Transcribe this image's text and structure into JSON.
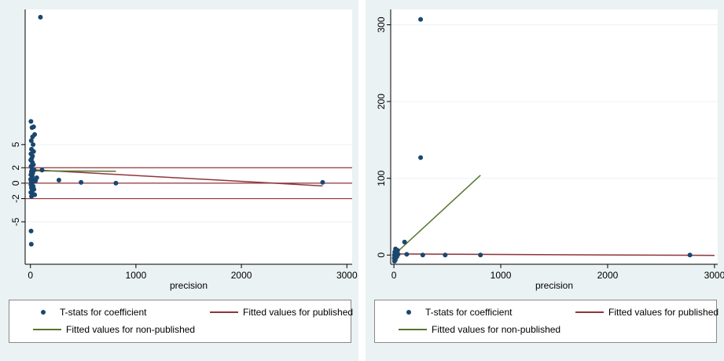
{
  "colors": {
    "background": "#eaf2f3",
    "plot_area": "#ffffff",
    "grid": "#eaf2f3",
    "points": "#1a476f",
    "published_line": "#90353b",
    "nonpublished_line": "#55752f"
  },
  "legend": {
    "tstats": "T-stats for coefficient",
    "published": "Fitted values for published",
    "nonpublished": "Fitted values for non-published"
  },
  "chart_data": [
    {
      "type": "scatter",
      "title": "",
      "xlabel": "precision",
      "ylabel": "",
      "xlim": [
        -50,
        3050
      ],
      "ylim": [
        -10.5,
        22.5
      ],
      "xticks": [
        0,
        1000,
        2000,
        3000
      ],
      "yticks": [
        -5,
        -2,
        0,
        2,
        5
      ],
      "grid": true,
      "legend_position": "bottom",
      "reference_lines": [
        -2,
        0,
        2
      ],
      "series": [
        {
          "name": "T-stats for coefficient",
          "points": [
            [
              95,
              21.5
            ],
            [
              5,
              8.0
            ],
            [
              30,
              7.3
            ],
            [
              15,
              7.2
            ],
            [
              40,
              6.3
            ],
            [
              20,
              6.0
            ],
            [
              8,
              5.5
            ],
            [
              25,
              5.0
            ],
            [
              10,
              4.4
            ],
            [
              30,
              4.1
            ],
            [
              5,
              3.8
            ],
            [
              20,
              3.5
            ],
            [
              12,
              3.2
            ],
            [
              3,
              3.0
            ],
            [
              18,
              2.7
            ],
            [
              28,
              2.4
            ],
            [
              6,
              2.2
            ],
            [
              14,
              1.9
            ],
            [
              35,
              1.7
            ],
            [
              9,
              1.5
            ],
            [
              22,
              1.3
            ],
            [
              4,
              1.1
            ],
            [
              17,
              0.9
            ],
            [
              60,
              0.7
            ],
            [
              11,
              0.6
            ],
            [
              2,
              0.5
            ],
            [
              30,
              0.4
            ],
            [
              48,
              0.3
            ],
            [
              7,
              0.2
            ],
            [
              20,
              0.1
            ],
            [
              13,
              0.0
            ],
            [
              5,
              -0.2
            ],
            [
              26,
              -0.4
            ],
            [
              9,
              -0.6
            ],
            [
              33,
              -0.8
            ],
            [
              15,
              -1.0
            ],
            [
              4,
              -1.2
            ],
            [
              22,
              -1.4
            ],
            [
              40,
              -1.5
            ],
            [
              10,
              -1.7
            ],
            [
              6,
              -6.2
            ],
            [
              8,
              -7.9
            ],
            [
              110,
              1.7
            ],
            [
              270,
              0.4
            ],
            [
              480,
              0.1
            ],
            [
              810,
              0.0
            ],
            [
              2770,
              0.1
            ]
          ]
        },
        {
          "name": "Fitted values for published",
          "line": [
            [
              0,
              1.75
            ],
            [
              2770,
              -0.35
            ]
          ]
        },
        {
          "name": "Fitted values for non-published",
          "line": [
            [
              0,
              1.6
            ],
            [
              810,
              1.55
            ]
          ]
        }
      ]
    },
    {
      "type": "scatter",
      "title": "",
      "xlabel": "precision",
      "ylabel": "",
      "xlim": [
        -30,
        3030
      ],
      "ylim": [
        -12,
        320
      ],
      "xticks": [
        0,
        1000,
        2000,
        3000
      ],
      "yticks": [
        0,
        100,
        200,
        300
      ],
      "grid": true,
      "legend_position": "bottom",
      "series": [
        {
          "name": "T-stats for coefficient",
          "points": [
            [
              250,
              307
            ],
            [
              250,
              127
            ],
            [
              100,
              17
            ],
            [
              15,
              8
            ],
            [
              35,
              6
            ],
            [
              8,
              4
            ],
            [
              22,
              3
            ],
            [
              12,
              2
            ],
            [
              40,
              1
            ],
            [
              5,
              0
            ],
            [
              18,
              -1
            ],
            [
              28,
              -2
            ],
            [
              10,
              -3
            ],
            [
              3,
              -4
            ],
            [
              14,
              -6
            ],
            [
              6,
              -8
            ],
            [
              120,
              1
            ],
            [
              270,
              0
            ],
            [
              480,
              0
            ],
            [
              810,
              0
            ],
            [
              2770,
              0
            ]
          ]
        },
        {
          "name": "Fitted values for published",
          "line": [
            [
              0,
              1.5
            ],
            [
              3000,
              -0.5
            ]
          ]
        },
        {
          "name": "Fitted values for non-published",
          "line": [
            [
              0,
              0
            ],
            [
              810,
              104
            ]
          ]
        }
      ]
    }
  ]
}
